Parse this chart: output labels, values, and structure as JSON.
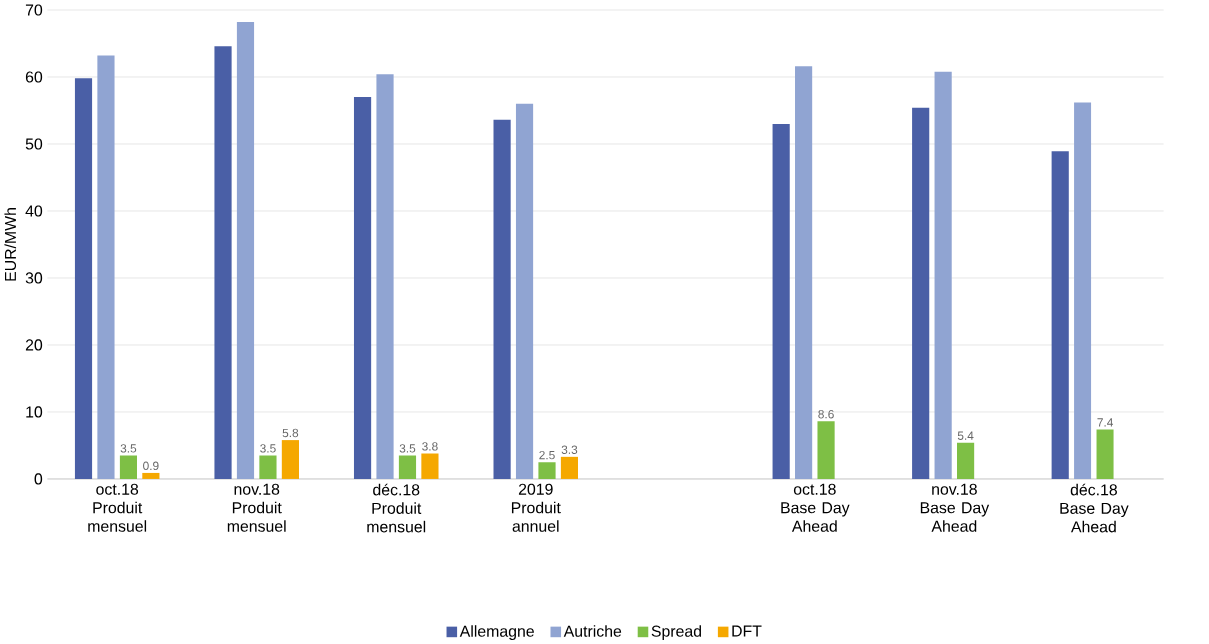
{
  "chart_data": {
    "type": "bar",
    "ylabel": "EUR/MWh",
    "categories": [
      "oct.18 Produit mensuel",
      "nov.18 Produit mensuel",
      "déc.18 Produit mensuel",
      "2019 Produit annuel",
      null,
      "oct.18 Base Day Ahead",
      "nov.18 Base Day Ahead",
      "déc.18 Base Day Ahead"
    ],
    "series": [
      {
        "name": "Allemagne",
        "color": "#4a5fa6",
        "values": [
          59.8,
          64.6,
          57.0,
          53.6,
          null,
          53.0,
          55.4,
          48.9
        ]
      },
      {
        "name": "Autriche",
        "color": "#90a4d2",
        "values": [
          63.2,
          68.2,
          60.4,
          56.0,
          null,
          61.6,
          60.8,
          56.2
        ]
      },
      {
        "name": "Spread",
        "color": "#7ebf45",
        "values": [
          3.5,
          3.5,
          3.5,
          2.5,
          null,
          8.6,
          5.4,
          7.4
        ],
        "value_labels": [
          "3.5",
          "3.5",
          "3.5",
          "2.5",
          null,
          "8.6",
          "5.4",
          "7.4"
        ]
      },
      {
        "name": "DFT",
        "color": "#f5a800",
        "values": [
          0.9,
          5.8,
          3.8,
          3.3,
          null,
          null,
          null,
          null
        ],
        "value_labels": [
          "0.9",
          "5.8",
          "3.8",
          "3.3",
          null,
          null,
          null,
          null
        ]
      }
    ],
    "ylim": [
      0,
      70
    ],
    "yticks": [
      0,
      10,
      20,
      30,
      40,
      50,
      60,
      70
    ],
    "grid": "y",
    "legend": "bottom"
  }
}
